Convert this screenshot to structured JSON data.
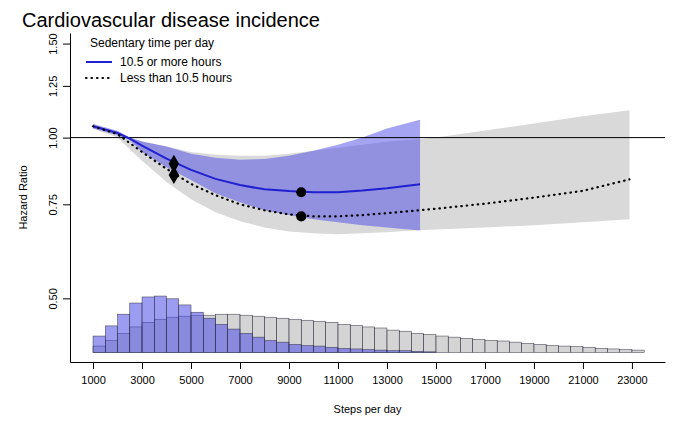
{
  "chart_data": {
    "type": "line",
    "title": "Cardiovascular disease incidence",
    "x_label": "Steps per day",
    "y_label": "Hazard Ratio",
    "legend_title": "Sedentary time per day",
    "legend": "top-left",
    "log": "y",
    "xlim": [
      60,
      24350
    ],
    "ylim": [
      0.38,
      1.57
    ],
    "xticks": [
      1000,
      3000,
      5000,
      7000,
      9000,
      11000,
      13000,
      15000,
      17000,
      19000,
      21000,
      23000
    ],
    "yticks": [
      {
        "value": 0.5,
        "label": "0.50"
      },
      {
        "value": 0.75,
        "label": "0.75"
      },
      {
        "value": 1,
        "label": "1.00"
      },
      {
        "value": 1.25,
        "label": "1.25"
      },
      {
        "value": 1.5,
        "label": "1.50"
      }
    ],
    "hline": 1,
    "series": [
      {
        "type": "area",
        "color": "#b4b4b4",
        "x": [
          1000,
          2000,
          3000,
          4000,
          5000,
          6000,
          7000,
          8000,
          9000,
          10000,
          11000,
          12000,
          13000,
          14000,
          15000,
          17000,
          19000,
          21000,
          22900
        ],
        "lower": [
          1.04,
          1.0,
          0.905,
          0.826,
          0.767,
          0.725,
          0.697,
          0.679,
          0.667,
          0.662,
          0.659,
          0.662,
          0.665,
          0.67,
          0.673,
          0.679,
          0.685,
          0.694,
          0.703
        ],
        "upper": [
          1.06,
          1.02,
          0.983,
          0.962,
          0.94,
          0.929,
          0.925,
          0.925,
          0.933,
          0.945,
          0.957,
          0.97,
          0.983,
          0.991,
          1.0,
          1.031,
          1.063,
          1.096,
          1.125
        ]
      },
      {
        "type": "area",
        "color": "#4a4ae8",
        "x": [
          1000,
          2000,
          2500,
          3000,
          4000,
          5000,
          6000,
          7000,
          8000,
          9000,
          10000,
          11000,
          12000,
          13000,
          14350
        ],
        "lower": [
          1.04,
          1.01,
          0.99,
          0.94,
          0.88,
          0.833,
          0.787,
          0.757,
          0.731,
          0.716,
          0.703,
          0.694,
          0.685,
          0.679,
          0.67
        ],
        "upper": [
          1.06,
          1.03,
          1.0,
          0.983,
          0.962,
          0.933,
          0.917,
          0.909,
          0.912,
          0.925,
          0.945,
          0.97,
          1.0,
          1.04,
          1.08
        ]
      },
      {
        "type": "histogram",
        "color": "#b0b0b0",
        "base": 0.396,
        "bins": [
          1000,
          1500,
          2000,
          2500,
          3000,
          3500,
          4000,
          4500,
          5000,
          5500,
          6000,
          6500,
          7000,
          7500,
          8000,
          8500,
          9000,
          9500,
          10000,
          10500,
          11000,
          11500,
          12000,
          12500,
          13000,
          13500,
          14000,
          14500,
          15000,
          15500,
          16000,
          16500,
          17000,
          17500,
          18000,
          18500,
          19000,
          19500,
          20000,
          20500,
          21000,
          21500,
          22000,
          22500,
          23000,
          23500
        ],
        "values": [
          0.407,
          0.417,
          0.43,
          0.442,
          0.451,
          0.457,
          0.461,
          0.463,
          0.465,
          0.465,
          0.467,
          0.467,
          0.465,
          0.463,
          0.461,
          0.459,
          0.457,
          0.455,
          0.453,
          0.451,
          0.447,
          0.445,
          0.442,
          0.44,
          0.436,
          0.434,
          0.43,
          0.428,
          0.425,
          0.423,
          0.421,
          0.419,
          0.417,
          0.416,
          0.414,
          0.412,
          0.41,
          0.408,
          0.407,
          0.406,
          0.405,
          0.403,
          0.402,
          0.401,
          0.4
        ]
      },
      {
        "type": "histogram",
        "color": "#4a4ae6",
        "base": 0.396,
        "bins": [
          1000,
          1500,
          2000,
          2500,
          3000,
          3500,
          4000,
          4500,
          5000,
          5500,
          6000,
          6500,
          7000,
          7500,
          8000,
          8500,
          9000,
          9500,
          10000,
          10500,
          11000,
          11500,
          12000,
          12500,
          13000,
          13500,
          14000,
          14500,
          15000
        ],
        "values": [
          0.425,
          0.444,
          0.467,
          0.49,
          0.503,
          0.505,
          0.499,
          0.486,
          0.471,
          0.459,
          0.447,
          0.438,
          0.43,
          0.423,
          0.417,
          0.414,
          0.41,
          0.408,
          0.407,
          0.405,
          0.403,
          0.402,
          0.401,
          0.4,
          0.399,
          0.399,
          0.398,
          0.397
        ]
      },
      {
        "type": "line",
        "name": "10.5 or more hours",
        "color": "#2020d0",
        "line_style": "solid",
        "x": [
          1000,
          2000,
          2500,
          3000,
          4000,
          5000,
          6000,
          7000,
          8000,
          9000,
          10000,
          11000,
          12000,
          13000,
          14350
        ],
        "values": [
          1.05,
          1.02,
          0.996,
          0.966,
          0.913,
          0.87,
          0.837,
          0.815,
          0.8,
          0.794,
          0.79,
          0.79,
          0.796,
          0.804,
          0.818
        ]
      },
      {
        "type": "line",
        "name": "Less than 10.5 hours",
        "color": "#000000",
        "line_style": "dotted",
        "x": [
          1000,
          2000,
          3000,
          4000,
          5000,
          6000,
          7000,
          8000,
          9000,
          10000,
          11000,
          12000,
          13000,
          14000,
          15000,
          17000,
          19000,
          21000,
          22900
        ],
        "values": [
          1.05,
          1.015,
          0.94,
          0.874,
          0.819,
          0.78,
          0.75,
          0.731,
          0.718,
          0.712,
          0.712,
          0.716,
          0.722,
          0.729,
          0.736,
          0.752,
          0.772,
          0.795,
          0.835
        ]
      },
      {
        "type": "scatter",
        "marker": "diamond",
        "color": "#000000",
        "x": [
          4300,
          4300
        ],
        "values": [
          0.893,
          0.851
        ]
      },
      {
        "type": "scatter",
        "marker": "circle",
        "color": "#000000",
        "x": [
          9500,
          9500
        ],
        "values": [
          0.79,
          0.712
        ]
      }
    ]
  }
}
